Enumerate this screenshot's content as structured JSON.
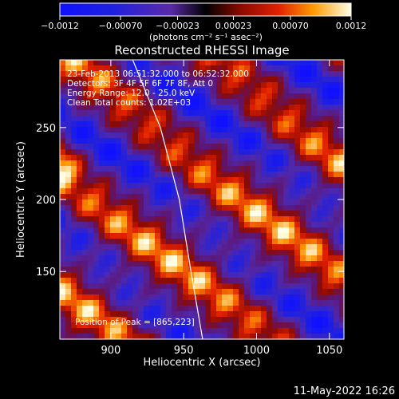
{
  "chart_data": {
    "type": "heatmap",
    "title": "Reconstructed RHESSI Image",
    "xlabel": "Heliocentric X (arcsec)",
    "ylabel": "Heliocentric Y (arcsec)",
    "xlim": [
      865,
      1060
    ],
    "ylim": [
      103,
      297
    ],
    "xticks": [
      900,
      950,
      1000,
      1050
    ],
    "yticks": [
      150,
      200,
      250
    ],
    "colorbar": {
      "label": "(photons cm⁻² s⁻¹ asec⁻²)",
      "range": [
        -0.0012,
        0.0012
      ],
      "tick_values": [
        -0.0012,
        -0.0007,
        -0.00023,
        0.00023,
        0.0007,
        0.0012
      ],
      "tick_labels": [
        "−0.0012",
        "−0.00070",
        "−0.00023",
        "0.00023",
        "0.00070",
        "0.0012"
      ]
    },
    "annotations": [
      "23-Feb-2013 06:51:32.000 to 06:52:32.000",
      "Detectors: 3F 4F 5F 6F 7F 8F, Att 0",
      "Energy Range: 12.0 - 25.0 keV",
      "Clean    Total counts: 1.02E+03"
    ],
    "peak_label": "Position of Peak = [865,223]",
    "limb_curve": {
      "x": [
        915,
        934,
        947,
        955,
        963
      ],
      "y": [
        297,
        250,
        200,
        150,
        103
      ]
    },
    "pattern": {
      "kx": 0.062,
      "ky": -0.04,
      "amplitude": 0.0011
    }
  },
  "footer": {
    "date": "11-May-2022 16:26"
  }
}
